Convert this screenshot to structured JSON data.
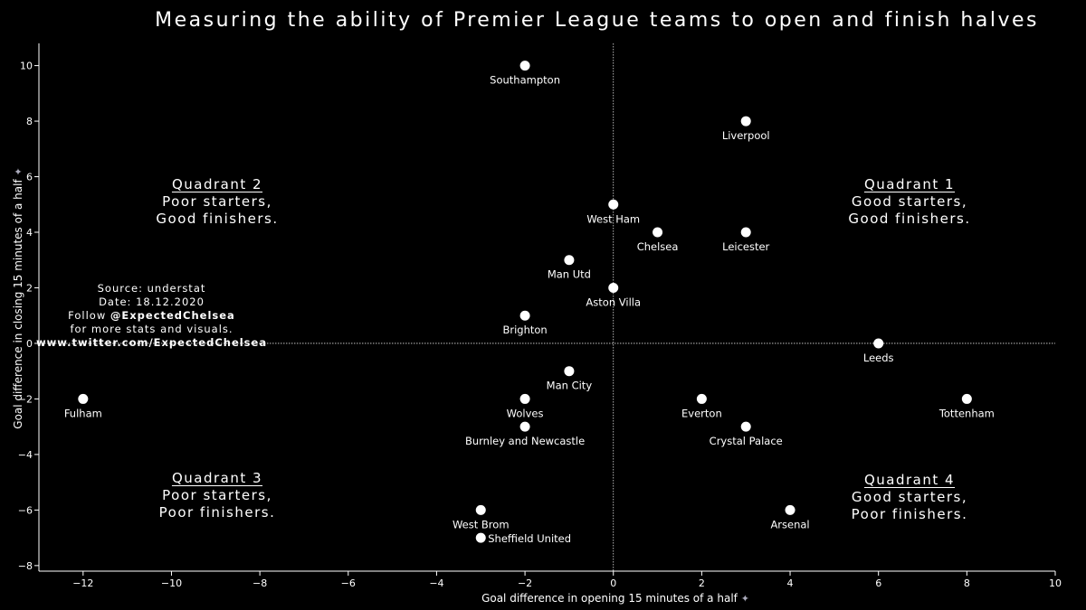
{
  "title": "Measuring the ability of Premier League teams to open and finish halves",
  "quadrants": [
    {
      "heading": "Quadrant 1",
      "line1": "Good starters,",
      "line2": "Good finishers."
    },
    {
      "heading": "Quadrant 2",
      "line1": "Poor starters,",
      "line2": "Good finishers."
    },
    {
      "heading": "Quadrant 3",
      "line1": "Poor starters,",
      "line2": "Poor finishers."
    },
    {
      "heading": "Quadrant 4",
      "line1": "Good starters,",
      "line2": "Poor finishers."
    }
  ],
  "source": {
    "line1": "Source: understat",
    "line2": "Date: 18.12.2020",
    "line3_prefix": "Follow ",
    "line3_handle": "@ExpectedChelsea",
    "line4": "for more stats and visuals.",
    "line5": "www.twitter.com/ExpectedChelsea"
  },
  "chart_data": {
    "type": "scatter",
    "title": "Measuring the ability of Premier League teams to open and finish halves",
    "xlabel": "Goal difference in opening 15 minutes of a half",
    "ylabel": "Goal difference in closing 15 minutes of a half",
    "xlim": [
      -13,
      10
    ],
    "ylim": [
      -8.2,
      10.8
    ],
    "xticks": [
      -12,
      -10,
      -8,
      -6,
      -4,
      -2,
      0,
      2,
      4,
      6,
      8,
      10
    ],
    "yticks": [
      -8,
      -6,
      -4,
      -2,
      0,
      2,
      4,
      6,
      8,
      10
    ],
    "reference_lines": {
      "x": 0,
      "y": 0,
      "style": "dotted"
    },
    "grid": false,
    "point_color": "#ffffff",
    "background": "#000000",
    "points": [
      {
        "team": "Southampton",
        "x": -2,
        "y": 10
      },
      {
        "team": "Liverpool",
        "x": 3,
        "y": 8
      },
      {
        "team": "West Ham",
        "x": 0,
        "y": 5
      },
      {
        "team": "Chelsea",
        "x": 1,
        "y": 4
      },
      {
        "team": "Leicester",
        "x": 3,
        "y": 4
      },
      {
        "team": "Man Utd",
        "x": -1,
        "y": 3
      },
      {
        "team": "Aston Villa",
        "x": 0,
        "y": 2
      },
      {
        "team": "Brighton",
        "x": -2,
        "y": 1
      },
      {
        "team": "Leeds",
        "x": 6,
        "y": 0
      },
      {
        "team": "Man City",
        "x": -1,
        "y": -1
      },
      {
        "team": "Fulham",
        "x": -12,
        "y": -2
      },
      {
        "team": "Wolves",
        "x": -2,
        "y": -2
      },
      {
        "team": "Everton",
        "x": 2,
        "y": -2
      },
      {
        "team": "Tottenham",
        "x": 8,
        "y": -2
      },
      {
        "team": "Burnley and Newcastle",
        "x": -2,
        "y": -3
      },
      {
        "team": "Crystal Palace",
        "x": 3,
        "y": -3
      },
      {
        "team": "West Brom",
        "x": -3,
        "y": -6
      },
      {
        "team": "Arsenal",
        "x": 4,
        "y": -6
      },
      {
        "team": "Sheffield United",
        "x": -3,
        "y": -7
      }
    ]
  }
}
